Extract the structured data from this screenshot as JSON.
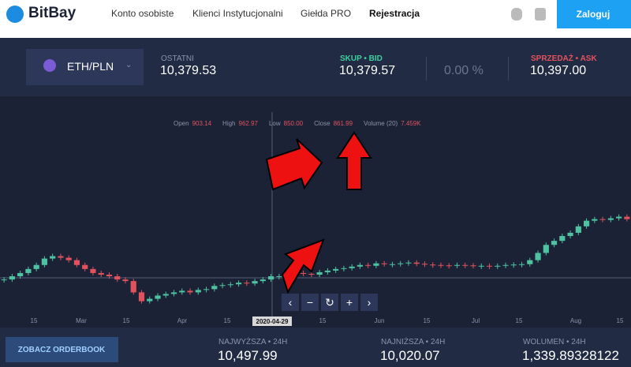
{
  "nav": {
    "logo": "BitBay",
    "links": [
      "Konto osobiste",
      "Klienci Instytucjonalni",
      "Giełda PRO"
    ],
    "register": "Rejestracja",
    "login": "Zaloguj"
  },
  "ticker": {
    "pair": "ETH/PLN",
    "last_label": "OSTATNI",
    "last": "10,379.53",
    "bid_label": "SKUP • BID",
    "bid": "10,379.57",
    "change": "0.00 %",
    "ask_label": "SPRZEDAŻ • ASK",
    "ask": "10,397.00"
  },
  "legend": [
    {
      "label": "Open",
      "value": "903.14"
    },
    {
      "label": "High",
      "value": "962.97"
    },
    {
      "label": "Low",
      "value": "850.00"
    },
    {
      "label": "Close",
      "value": "861.99"
    },
    {
      "label": "Volume (20)",
      "value": "7.459K"
    }
  ],
  "chart": {
    "type": "candlestick",
    "ylim": [
      270,
      2800
    ],
    "close": [
      720,
      760,
      800,
      850,
      900,
      980,
      1010,
      990,
      960,
      900,
      850,
      800,
      780,
      760,
      720,
      700,
      560,
      450,
      480,
      520,
      540,
      560,
      580,
      560,
      590,
      600,
      640,
      650,
      660,
      680,
      670,
      700,
      720,
      760,
      760,
      780,
      800,
      790,
      780,
      810,
      830,
      850,
      860,
      880,
      900,
      890,
      920,
      910,
      910,
      920,
      930,
      915,
      905,
      900,
      895,
      890,
      900,
      895,
      885,
      890,
      880,
      890,
      900,
      905,
      910,
      960,
      1050,
      1150,
      1200,
      1260,
      1300,
      1380,
      1450,
      1470,
      1460,
      1480,
      1500,
      1470
    ],
    "x_labels": [
      "15",
      "Mar",
      "15",
      "Apr",
      "15",
      "15",
      "Jun",
      "15",
      "Jul",
      "15",
      "Aug",
      "15"
    ],
    "crosshair_date": "2020-04-29"
  },
  "footer": {
    "orderbook": "ZOBACZ ORDERBOOK",
    "stats": [
      {
        "label": "NAJWYŻSZA • 24H",
        "value": "10,497.99"
      },
      {
        "label": "NAJNIŻSZA • 24H",
        "value": "10,020.07"
      },
      {
        "label": "WOLUMEN • 24H",
        "value": "1,339.89328122"
      }
    ]
  }
}
